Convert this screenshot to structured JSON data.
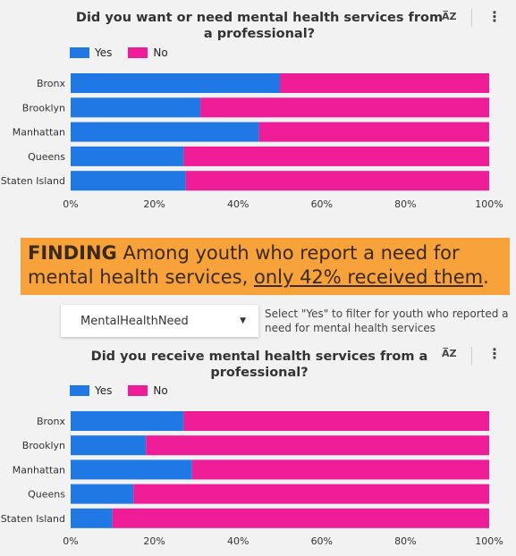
{
  "colors": {
    "yes": "#1f78e4",
    "no": "#ee1c97",
    "finding_bg": "#f7a23b"
  },
  "icons": {
    "sort": "sort-az-icon",
    "menu": "more-vert-icon"
  },
  "finding": {
    "lead": "FINDING",
    "text_a": " Among youth who report a need for mental health services, ",
    "text_u": "only 42% received them",
    "text_b": "."
  },
  "filter": {
    "selected": "MentalHealthNeed",
    "note": "Select \"Yes\" to filter for youth who reported a need for mental health services"
  },
  "chart_data": [
    {
      "type": "bar",
      "orientation": "horizontal",
      "stacked": "100%",
      "title": "Did you want or need mental health services from a professional?",
      "categories": [
        "Bronx",
        "Brooklyn",
        "Manhattan",
        "Queens",
        "Staten Island"
      ],
      "series": [
        {
          "name": "Yes",
          "values": [
            50,
            31,
            45,
            27,
            27.5
          ]
        },
        {
          "name": "No",
          "values": [
            50,
            69,
            55,
            73,
            72.5
          ]
        }
      ],
      "x_ticks": [
        "0%",
        "20%",
        "40%",
        "60%",
        "80%",
        "100%"
      ],
      "xlim": [
        0,
        100
      ],
      "legend": "top-left",
      "grid": false
    },
    {
      "type": "bar",
      "orientation": "horizontal",
      "stacked": "100%",
      "title": "Did you receive mental health services from a professional?",
      "categories": [
        "Bronx",
        "Brooklyn",
        "Manhattan",
        "Queens",
        "Staten Island"
      ],
      "series": [
        {
          "name": "Yes",
          "values": [
            27,
            18,
            29,
            15,
            10
          ]
        },
        {
          "name": "No",
          "values": [
            73,
            82,
            71,
            85,
            90
          ]
        }
      ],
      "x_ticks": [
        "0%",
        "20%",
        "40%",
        "60%",
        "80%",
        "100%"
      ],
      "xlim": [
        0,
        100
      ],
      "legend": "top-left",
      "grid": false
    }
  ]
}
